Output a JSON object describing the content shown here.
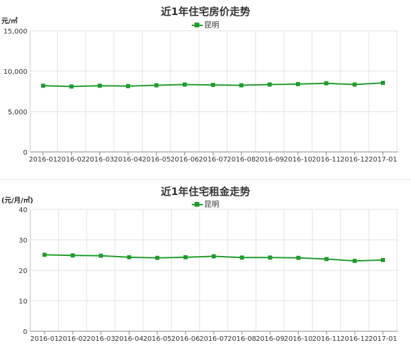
{
  "chart_data": [
    {
      "type": "line",
      "title": "近1年住宅房价走势",
      "ylabel": "元/㎡",
      "categories": [
        "2016-01",
        "2016-02",
        "2016-03",
        "2016-04",
        "2016-05",
        "2016-06",
        "2016-07",
        "2016-08",
        "2016-09",
        "2016-10",
        "2016-11",
        "2016-12",
        "2017-01"
      ],
      "series": [
        {
          "name": "昆明",
          "color": "#1f9b2c",
          "values": [
            8200,
            8100,
            8200,
            8150,
            8250,
            8350,
            8300,
            8250,
            8350,
            8400,
            8500,
            8350,
            8550
          ]
        }
      ],
      "ylim": [
        0,
        15000
      ],
      "yticks": [
        "0",
        "5,000",
        "10,000",
        "15,000"
      ],
      "ytick_values": [
        0,
        5000,
        10000,
        15000
      ],
      "grid": true,
      "legend": "top-center"
    },
    {
      "type": "line",
      "title": "近1年住宅租金走势",
      "ylabel": "(元/月/㎡)",
      "categories": [
        "2016-01",
        "2016-02",
        "2016-03",
        "2016-04",
        "2016-05",
        "2016-06",
        "2016-07",
        "2016-08",
        "2016-09",
        "2016-10",
        "2016-11",
        "2016-12",
        "2017-01"
      ],
      "series": [
        {
          "name": "昆明",
          "color": "#1f9b2c",
          "values": [
            25.1,
            24.9,
            24.8,
            24.3,
            24.1,
            24.3,
            24.6,
            24.2,
            24.2,
            24.1,
            23.7,
            23.1,
            23.4
          ]
        }
      ],
      "ylim": [
        0,
        40
      ],
      "yticks": [
        "0",
        "10",
        "20",
        "30",
        "40"
      ],
      "ytick_values": [
        0,
        10,
        20,
        30,
        40
      ],
      "grid": true,
      "legend": "top-center"
    }
  ]
}
